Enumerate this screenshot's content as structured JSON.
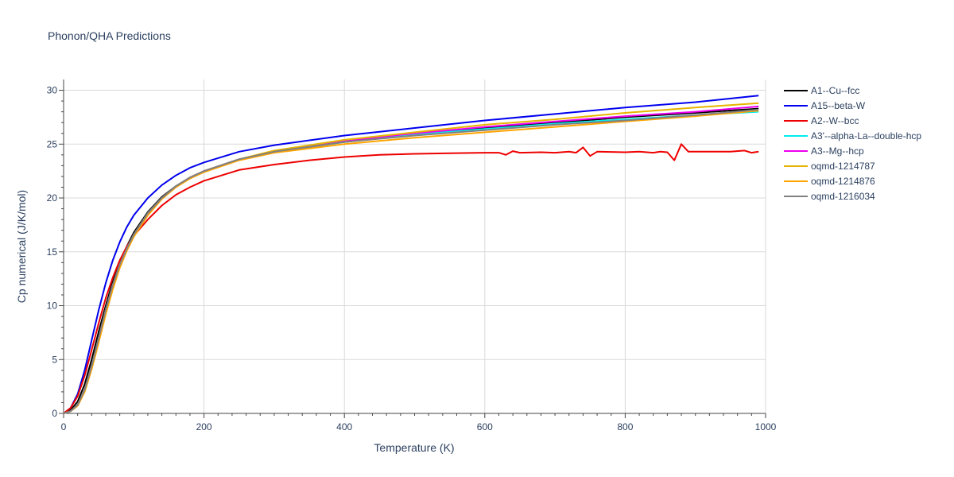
{
  "chart_data": {
    "type": "line",
    "title": "Phonon/QHA Predictions",
    "xlabel": "Temperature (K)",
    "ylabel": "Cp numerical (J/K/mol)",
    "xlim": [
      0,
      1000
    ],
    "ylim": [
      0,
      31
    ],
    "xticks": [
      0,
      200,
      400,
      600,
      800,
      1000
    ],
    "yticks": [
      0,
      5,
      10,
      15,
      20,
      25,
      30
    ],
    "grid": true,
    "legend_position": "right",
    "series": [
      {
        "name": "A1--Cu--fcc",
        "color": "#000000",
        "x": [
          0,
          10,
          20,
          30,
          40,
          50,
          60,
          70,
          80,
          90,
          100,
          120,
          140,
          160,
          180,
          200,
          250,
          300,
          400,
          500,
          600,
          700,
          800,
          900,
          990
        ],
        "y": [
          0,
          0.3,
          1.1,
          2.7,
          5.0,
          7.6,
          10.0,
          12.2,
          14.0,
          15.5,
          16.8,
          18.7,
          20.1,
          21.1,
          21.9,
          22.5,
          23.6,
          24.3,
          25.2,
          25.9,
          26.5,
          27.0,
          27.5,
          27.9,
          28.3
        ]
      },
      {
        "name": "A15--beta-W",
        "color": "#0000ee",
        "x": [
          0,
          10,
          20,
          30,
          40,
          50,
          60,
          70,
          80,
          90,
          100,
          120,
          140,
          160,
          180,
          200,
          250,
          300,
          400,
          500,
          600,
          700,
          800,
          900,
          990
        ],
        "y": [
          0,
          0.5,
          1.8,
          4.0,
          6.8,
          9.6,
          12.1,
          14.2,
          15.9,
          17.3,
          18.4,
          20.0,
          21.2,
          22.1,
          22.8,
          23.3,
          24.3,
          24.9,
          25.8,
          26.5,
          27.2,
          27.8,
          28.4,
          28.9,
          29.5
        ]
      },
      {
        "name": "A2--W--bcc",
        "color": "#ee0000",
        "x": [
          0,
          10,
          20,
          30,
          40,
          50,
          60,
          70,
          80,
          90,
          100,
          120,
          140,
          160,
          180,
          200,
          250,
          300,
          350,
          400,
          450,
          500,
          550,
          600,
          620,
          630,
          640,
          650,
          680,
          700,
          720,
          730,
          740,
          750,
          760,
          800,
          820,
          840,
          850,
          860,
          870,
          880,
          890,
          900,
          950,
          970,
          980,
          990
        ],
        "y": [
          0,
          0.5,
          1.6,
          3.5,
          5.9,
          8.4,
          10.7,
          12.6,
          14.2,
          15.5,
          16.5,
          18.0,
          19.3,
          20.3,
          21.0,
          21.6,
          22.6,
          23.1,
          23.5,
          23.8,
          24.0,
          24.1,
          24.15,
          24.2,
          24.2,
          24.0,
          24.35,
          24.2,
          24.25,
          24.2,
          24.3,
          24.2,
          24.7,
          23.9,
          24.3,
          24.25,
          24.3,
          24.2,
          24.3,
          24.25,
          23.5,
          25.0,
          24.3,
          24.3,
          24.3,
          24.4,
          24.2,
          24.3
        ]
      },
      {
        "name": "A3'--alpha-La--double-hcp",
        "color": "#00eeee",
        "x": [
          0,
          10,
          20,
          30,
          40,
          50,
          60,
          70,
          80,
          90,
          100,
          120,
          140,
          160,
          180,
          200,
          250,
          300,
          400,
          500,
          600,
          700,
          800,
          900,
          990
        ],
        "y": [
          0,
          0.2,
          0.8,
          2.2,
          4.4,
          7.0,
          9.6,
          11.9,
          13.8,
          15.3,
          16.6,
          18.6,
          20.0,
          21.1,
          21.9,
          22.5,
          23.6,
          24.3,
          25.2,
          25.9,
          26.4,
          26.9,
          27.3,
          27.7,
          28.0
        ]
      },
      {
        "name": "A3--Mg--hcp",
        "color": "#ee00ee",
        "x": [
          0,
          10,
          20,
          30,
          40,
          50,
          60,
          70,
          80,
          90,
          100,
          120,
          140,
          160,
          180,
          200,
          250,
          300,
          400,
          500,
          600,
          700,
          800,
          900,
          990
        ],
        "y": [
          0,
          0.2,
          0.8,
          2.2,
          4.4,
          7.0,
          9.6,
          11.9,
          13.8,
          15.3,
          16.6,
          18.6,
          20.0,
          21.1,
          21.9,
          22.5,
          23.6,
          24.3,
          25.3,
          26.0,
          26.6,
          27.1,
          27.6,
          28.0,
          28.5
        ]
      },
      {
        "name": "oqmd-1214787",
        "color": "#e6b400",
        "x": [
          0,
          10,
          20,
          30,
          40,
          50,
          60,
          70,
          80,
          90,
          100,
          120,
          140,
          160,
          180,
          200,
          250,
          300,
          400,
          500,
          600,
          700,
          800,
          900,
          990
        ],
        "y": [
          0,
          0.2,
          0.8,
          2.2,
          4.4,
          7.0,
          9.6,
          11.9,
          13.8,
          15.3,
          16.6,
          18.6,
          20.0,
          21.1,
          21.9,
          22.5,
          23.6,
          24.4,
          25.4,
          26.1,
          26.8,
          27.3,
          27.9,
          28.4,
          28.8
        ]
      },
      {
        "name": "oqmd-1214876",
        "color": "#ffa500",
        "x": [
          0,
          10,
          20,
          30,
          40,
          50,
          60,
          70,
          80,
          90,
          100,
          120,
          140,
          160,
          180,
          200,
          250,
          300,
          400,
          500,
          600,
          700,
          800,
          900,
          990
        ],
        "y": [
          0,
          0.2,
          0.7,
          2.0,
          4.1,
          6.6,
          9.2,
          11.5,
          13.5,
          15.1,
          16.4,
          18.4,
          19.9,
          21.0,
          21.8,
          22.4,
          23.5,
          24.2,
          25.0,
          25.6,
          26.1,
          26.6,
          27.1,
          27.6,
          28.1
        ]
      },
      {
        "name": "oqmd-1216034",
        "color": "#808080",
        "x": [
          0,
          10,
          20,
          30,
          40,
          50,
          60,
          70,
          80,
          90,
          100,
          120,
          140,
          160,
          180,
          200,
          250,
          300,
          400,
          500,
          600,
          700,
          800,
          900,
          990
        ],
        "y": [
          0,
          0.2,
          0.8,
          2.2,
          4.4,
          7.0,
          9.6,
          11.9,
          13.8,
          15.3,
          16.6,
          18.6,
          20.0,
          21.1,
          21.9,
          22.5,
          23.6,
          24.3,
          25.2,
          25.8,
          26.3,
          26.8,
          27.2,
          27.7,
          28.2
        ]
      }
    ]
  }
}
